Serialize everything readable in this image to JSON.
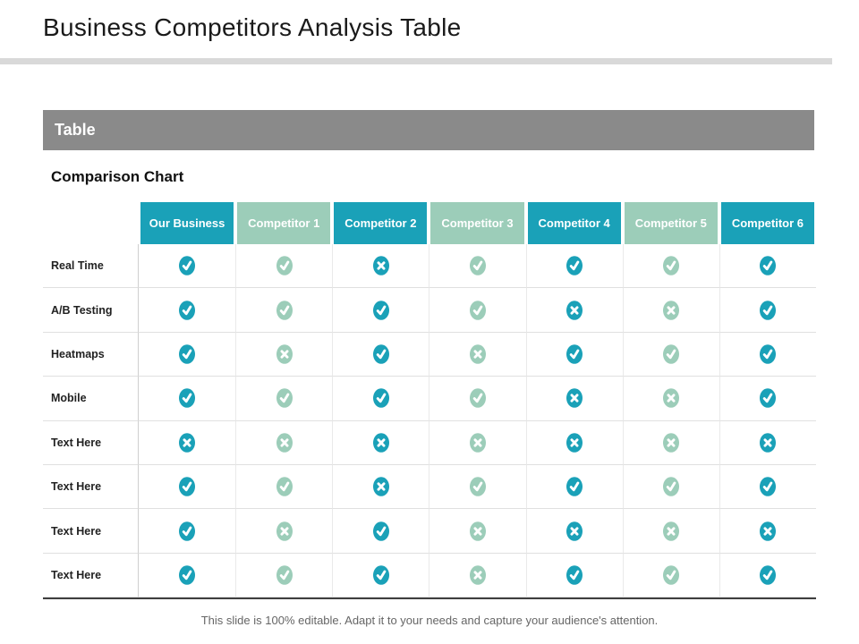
{
  "slide": {
    "title": "Business Competitors Analysis Table",
    "footer": "This slide is 100% editable. Adapt it to your needs and capture your audience's attention."
  },
  "section": {
    "bar_label": "Table",
    "subtitle": "Comparison Chart"
  },
  "colors": {
    "teal": "#1aa1b8",
    "green": "#9ccdb9",
    "section_bar": "#8a8a8a",
    "top_divider": "#d9d9d9",
    "table_bottom_rule": "#3f3f3f"
  },
  "icons": {
    "check": "✔",
    "cross": "✖"
  },
  "chart_data": {
    "type": "table",
    "title": "Comparison Chart",
    "columns": [
      {
        "label": "Our Business",
        "scheme": "teal"
      },
      {
        "label": "Competitor 1",
        "scheme": "green"
      },
      {
        "label": "Competitor 2",
        "scheme": "teal"
      },
      {
        "label": "Competitor 3",
        "scheme": "green"
      },
      {
        "label": "Competitor 4",
        "scheme": "teal"
      },
      {
        "label": "Competitor 5",
        "scheme": "green"
      },
      {
        "label": "Competitor 6",
        "scheme": "teal"
      }
    ],
    "rows": [
      {
        "label": "Real Time",
        "values": [
          "check",
          "check",
          "cross",
          "check",
          "check",
          "check",
          "check"
        ]
      },
      {
        "label": "A/B Testing",
        "values": [
          "check",
          "check",
          "check",
          "check",
          "cross",
          "cross",
          "check"
        ]
      },
      {
        "label": "Heatmaps",
        "values": [
          "check",
          "cross",
          "check",
          "cross",
          "check",
          "check",
          "check"
        ]
      },
      {
        "label": "Mobile",
        "values": [
          "check",
          "check",
          "check",
          "check",
          "cross",
          "cross",
          "check"
        ]
      },
      {
        "label": "Text Here",
        "values": [
          "cross",
          "cross",
          "cross",
          "cross",
          "cross",
          "cross",
          "cross"
        ]
      },
      {
        "label": "Text Here",
        "values": [
          "check",
          "check",
          "cross",
          "check",
          "check",
          "check",
          "check"
        ]
      },
      {
        "label": "Text Here",
        "values": [
          "check",
          "cross",
          "check",
          "cross",
          "cross",
          "cross",
          "cross"
        ]
      },
      {
        "label": "Text Here",
        "values": [
          "check",
          "check",
          "check",
          "cross",
          "check",
          "check",
          "check"
        ]
      }
    ]
  }
}
